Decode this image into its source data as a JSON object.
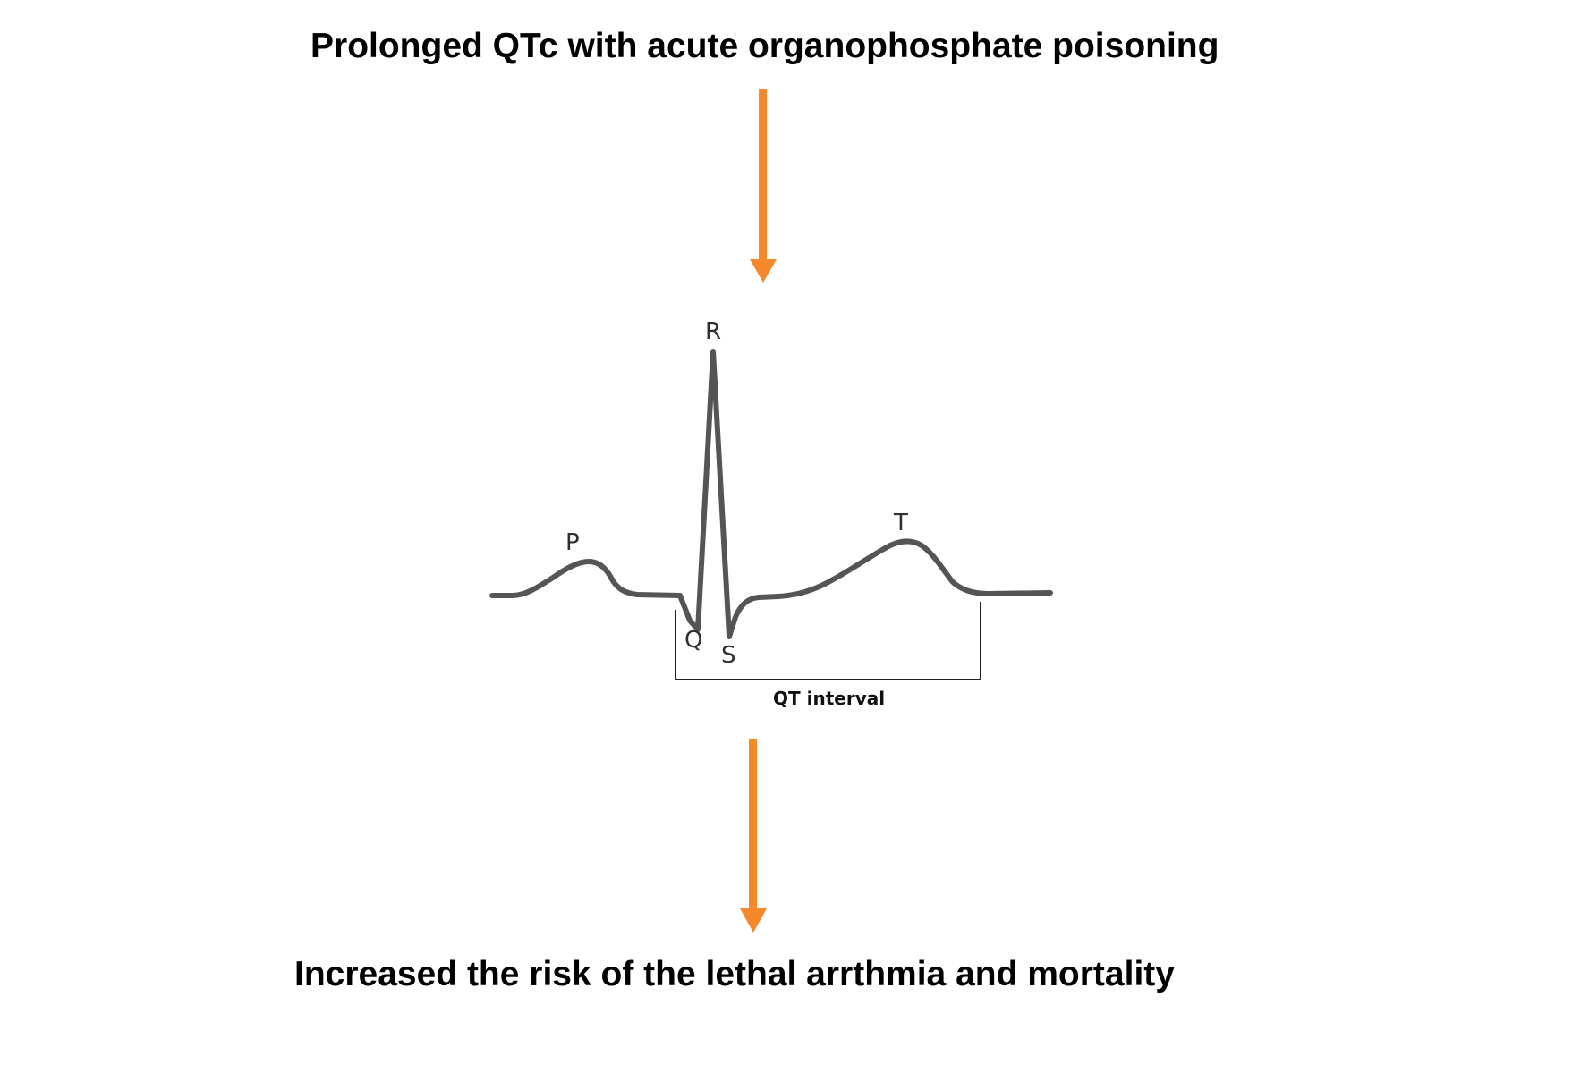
{
  "title_top": "Prolonged QTc with acute organophosphate poisoning",
  "title_bottom": "Increased the risk of the lethal arrthmia and mortality",
  "ecg": {
    "labels": {
      "p": "P",
      "q": "Q",
      "r": "R",
      "s": "S",
      "t": "T"
    },
    "interval_label": "QT interval"
  },
  "colors": {
    "arrow": "#f5882a",
    "trace": "#555555",
    "bracket": "#222222"
  }
}
